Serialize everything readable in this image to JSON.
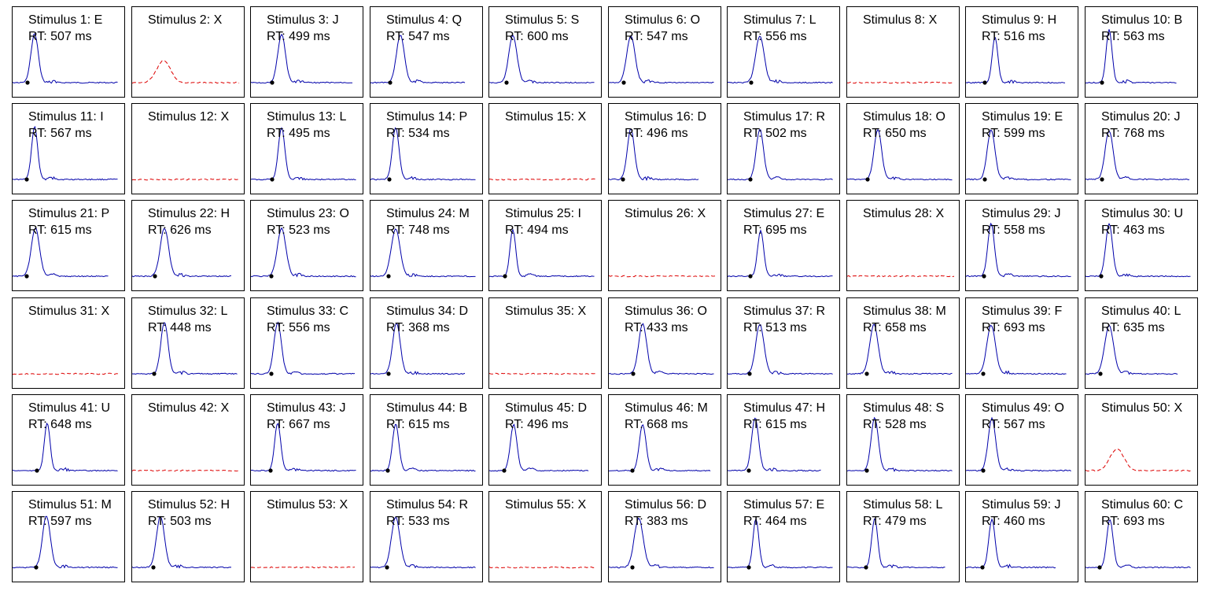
{
  "colors": {
    "trace": "#0000aa",
    "no_response": "#dd0000",
    "marker": "#000000"
  },
  "chart_data": {
    "type": "line",
    "panels": [
      {
        "title": "Stimulus 1: E",
        "rt": "RT: 507 ms",
        "response": true
      },
      {
        "title": "Stimulus 2: X",
        "rt": "",
        "response": false
      },
      {
        "title": "Stimulus 3: J",
        "rt": "RT: 499 ms",
        "response": true
      },
      {
        "title": "Stimulus 4: Q",
        "rt": "RT: 547 ms",
        "response": true
      },
      {
        "title": "Stimulus 5: S",
        "rt": "RT: 600 ms",
        "response": true
      },
      {
        "title": "Stimulus 6: O",
        "rt": "RT: 547 ms",
        "response": true
      },
      {
        "title": "Stimulus 7: L",
        "rt": "RT: 556 ms",
        "response": true
      },
      {
        "title": "Stimulus 8: X",
        "rt": "",
        "response": false
      },
      {
        "title": "Stimulus 9: H",
        "rt": "RT: 516 ms",
        "response": true
      },
      {
        "title": "Stimulus 10: B",
        "rt": "RT: 563 ms",
        "response": true
      },
      {
        "title": "Stimulus 11: I",
        "rt": "RT: 567 ms",
        "response": true
      },
      {
        "title": "Stimulus 12: X",
        "rt": "",
        "response": false
      },
      {
        "title": "Stimulus 13: L",
        "rt": "RT: 495 ms",
        "response": true
      },
      {
        "title": "Stimulus 14: P",
        "rt": "RT: 534 ms",
        "response": true
      },
      {
        "title": "Stimulus 15: X",
        "rt": "",
        "response": false
      },
      {
        "title": "Stimulus 16: D",
        "rt": "RT: 496 ms",
        "response": true
      },
      {
        "title": "Stimulus 17: R",
        "rt": "RT: 502 ms",
        "response": true
      },
      {
        "title": "Stimulus 18: O",
        "rt": "RT: 650 ms",
        "response": true
      },
      {
        "title": "Stimulus 19: E",
        "rt": "RT: 599 ms",
        "response": true
      },
      {
        "title": "Stimulus 20: J",
        "rt": "RT: 768 ms",
        "response": true
      },
      {
        "title": "Stimulus 21: P",
        "rt": "RT: 615 ms",
        "response": true
      },
      {
        "title": "Stimulus 22: H",
        "rt": "RT: 626 ms",
        "response": true
      },
      {
        "title": "Stimulus 23: O",
        "rt": "RT: 523 ms",
        "response": true
      },
      {
        "title": "Stimulus 24: M",
        "rt": "RT: 748 ms",
        "response": true
      },
      {
        "title": "Stimulus 25: I",
        "rt": "RT: 494 ms",
        "response": true
      },
      {
        "title": "Stimulus 26: X",
        "rt": "",
        "response": false
      },
      {
        "title": "Stimulus 27: E",
        "rt": "RT: 695 ms",
        "response": true
      },
      {
        "title": "Stimulus 28: X",
        "rt": "",
        "response": false
      },
      {
        "title": "Stimulus 29: J",
        "rt": "RT: 558 ms",
        "response": true
      },
      {
        "title": "Stimulus 30: U",
        "rt": "RT: 463 ms",
        "response": true
      },
      {
        "title": "Stimulus 31: X",
        "rt": "",
        "response": false
      },
      {
        "title": "Stimulus 32: L",
        "rt": "RT: 448 ms",
        "response": true
      },
      {
        "title": "Stimulus 33: C",
        "rt": "RT: 556 ms",
        "response": true
      },
      {
        "title": "Stimulus 34: D",
        "rt": "RT: 368 ms",
        "response": true
      },
      {
        "title": "Stimulus 35: X",
        "rt": "",
        "response": false
      },
      {
        "title": "Stimulus 36: O",
        "rt": "RT: 433 ms",
        "response": true
      },
      {
        "title": "Stimulus 37: R",
        "rt": "RT: 513 ms",
        "response": true
      },
      {
        "title": "Stimulus 38: M",
        "rt": "RT: 658 ms",
        "response": true
      },
      {
        "title": "Stimulus 39: F",
        "rt": "RT: 693 ms",
        "response": true
      },
      {
        "title": "Stimulus 40: L",
        "rt": "RT: 635 ms",
        "response": true
      },
      {
        "title": "Stimulus 41: U",
        "rt": "RT: 648 ms",
        "response": true
      },
      {
        "title": "Stimulus 42: X",
        "rt": "",
        "response": false
      },
      {
        "title": "Stimulus 43: J",
        "rt": "RT: 667 ms",
        "response": true
      },
      {
        "title": "Stimulus 44: B",
        "rt": "RT: 615 ms",
        "response": true
      },
      {
        "title": "Stimulus 45: D",
        "rt": "RT: 496 ms",
        "response": true
      },
      {
        "title": "Stimulus 46: M",
        "rt": "RT: 668 ms",
        "response": true
      },
      {
        "title": "Stimulus 47: H",
        "rt": "RT: 615 ms",
        "response": true
      },
      {
        "title": "Stimulus 48: S",
        "rt": "RT: 528 ms",
        "response": true
      },
      {
        "title": "Stimulus 49: O",
        "rt": "RT: 567 ms",
        "response": true
      },
      {
        "title": "Stimulus 50: X",
        "rt": "",
        "response": false
      },
      {
        "title": "Stimulus 51: M",
        "rt": "RT: 597 ms",
        "response": true
      },
      {
        "title": "Stimulus 52: H",
        "rt": "RT: 503 ms",
        "response": true
      },
      {
        "title": "Stimulus 53: X",
        "rt": "",
        "response": false
      },
      {
        "title": "Stimulus 54: R",
        "rt": "RT: 533 ms",
        "response": true
      },
      {
        "title": "Stimulus 55: X",
        "rt": "",
        "response": false
      },
      {
        "title": "Stimulus 56: D",
        "rt": "RT: 383 ms",
        "response": true
      },
      {
        "title": "Stimulus 57: E",
        "rt": "RT: 464 ms",
        "response": true
      },
      {
        "title": "Stimulus 58: L",
        "rt": "RT: 479 ms",
        "response": true
      },
      {
        "title": "Stimulus 59: J",
        "rt": "RT: 460 ms",
        "response": true
      },
      {
        "title": "Stimulus 60: C",
        "rt": "RT: 693 ms",
        "response": true
      }
    ]
  }
}
